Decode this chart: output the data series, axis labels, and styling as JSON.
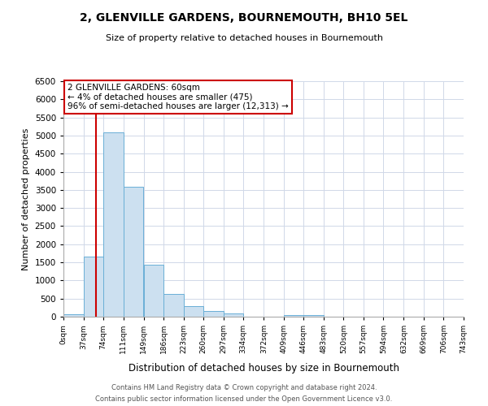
{
  "title": "2, GLENVILLE GARDENS, BOURNEMOUTH, BH10 5EL",
  "subtitle": "Size of property relative to detached houses in Bournemouth",
  "xlabel": "Distribution of detached houses by size in Bournemouth",
  "ylabel": "Number of detached properties",
  "bin_edges": [
    0,
    37,
    74,
    111,
    149,
    186,
    223,
    260,
    297,
    334,
    372,
    409,
    446,
    483,
    520,
    557,
    594,
    632,
    669,
    706,
    743
  ],
  "bar_heights": [
    75,
    1650,
    5080,
    3580,
    1430,
    620,
    300,
    150,
    100,
    0,
    0,
    50,
    50,
    0,
    0,
    0,
    0,
    0,
    0,
    0
  ],
  "bar_color": "#cce0f0",
  "bar_edgecolor": "#6aafd6",
  "property_size": 60,
  "property_label": "2 GLENVILLE GARDENS: 60sqm",
  "annotation_line1": "← 4% of detached houses are smaller (475)",
  "annotation_line2": "96% of semi-detached houses are larger (12,313) →",
  "vline_color": "#cc0000",
  "annotation_box_edgecolor": "#cc0000",
  "ylim": [
    0,
    6500
  ],
  "yticks": [
    0,
    500,
    1000,
    1500,
    2000,
    2500,
    3000,
    3500,
    4000,
    4500,
    5000,
    5500,
    6000,
    6500
  ],
  "footer_line1": "Contains HM Land Registry data © Crown copyright and database right 2024.",
  "footer_line2": "Contains public sector information licensed under the Open Government Licence v3.0.",
  "background_color": "#ffffff",
  "grid_color": "#d0d8e8"
}
